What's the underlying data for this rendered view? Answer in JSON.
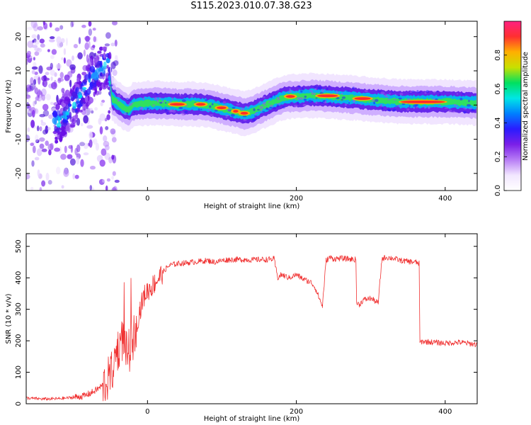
{
  "figure": {
    "title": "S115.2023.010.07.38.G23"
  },
  "chart_data": [
    {
      "type": "heatmap",
      "title": "S115.2023.010.07.38.G23",
      "xlabel": "Height of straight line (km)",
      "ylabel": "Frequency (Hz)",
      "xlim": [
        -163,
        443
      ],
      "ylim": [
        -25,
        24.5
      ],
      "x_ticks": [
        0,
        200,
        400
      ],
      "y_ticks": [
        -20,
        -10,
        0,
        10,
        20
      ],
      "grid": false,
      "colorbar": {
        "label": "Normalized spectral amplitude",
        "range": [
          0,
          1
        ],
        "ticks": [
          0.0,
          0.2,
          0.4,
          0.6,
          0.8
        ],
        "colormap": [
          "#ffffff",
          "#f2e6ff",
          "#b77cf5",
          "#7a1fe8",
          "#2a1cff",
          "#0080ff",
          "#00e6e6",
          "#00e060",
          "#c8e000",
          "#ffb000",
          "#ff3030",
          "#ff2080"
        ]
      },
      "ridge_center": {
        "x": [
          -163,
          -150,
          -140,
          -130,
          -120,
          -110,
          -100,
          -90,
          -80,
          -70,
          -60,
          -52,
          -48,
          -40,
          -30,
          -25,
          -20,
          -10,
          0,
          20,
          40,
          60,
          80,
          100,
          110,
          120,
          130,
          140,
          150,
          160,
          170,
          180,
          190,
          200,
          220,
          240,
          260,
          280,
          300,
          320,
          340,
          360,
          380,
          400,
          420,
          443
        ],
        "y": [
          -10,
          -8,
          -6,
          -4,
          -5,
          -3,
          0,
          3,
          6,
          9,
          11,
          12,
          2,
          0.5,
          -1,
          -1.5,
          0,
          0.3,
          0.5,
          0.5,
          0.2,
          0.3,
          0,
          -1,
          -1.5,
          -2,
          -2.5,
          -2,
          -1,
          0,
          1,
          2,
          2.5,
          2.5,
          2.8,
          2.6,
          2.3,
          2,
          1.6,
          1.3,
          1,
          1,
          1,
          1,
          0.8,
          0.6
        ]
      },
      "peak_segments": [
        {
          "x": [
            30,
            50
          ],
          "y": 0.2
        },
        {
          "x": [
            65,
            78
          ],
          "y": 0.2
        },
        {
          "x": [
            93,
            106
          ],
          "y": -0.8
        },
        {
          "x": [
            115,
            122
          ],
          "y": -1.8
        },
        {
          "x": [
            125,
            135
          ],
          "y": -2.4
        },
        {
          "x": [
            186,
            198
          ],
          "y": 2.5
        },
        {
          "x": [
            228,
            256
          ],
          "y": 2.7
        },
        {
          "x": [
            278,
            300
          ],
          "y": 1.9
        },
        {
          "x": [
            340,
            400
          ],
          "y": 0.9
        }
      ]
    },
    {
      "type": "line",
      "xlabel": "Height of straight line (km)",
      "ylabel": "SNR (10 * v/v)",
      "xlim": [
        -163,
        443
      ],
      "ylim": [
        0,
        540
      ],
      "x_ticks": [
        0,
        200,
        400
      ],
      "y_ticks": [
        0,
        100,
        200,
        300,
        400,
        500
      ],
      "grid": false,
      "color": "#f03030",
      "series": [
        {
          "x": [
            -163,
            -140,
            -120,
            -100,
            -85,
            -75,
            -65,
            -55,
            -48,
            -42,
            -37,
            -32,
            -28,
            -24,
            -20,
            -15,
            -10,
            -5,
            0,
            5,
            10,
            15,
            20,
            25,
            30,
            40,
            50,
            60,
            70,
            80,
            90,
            100,
            110,
            120,
            130,
            140,
            150,
            160,
            170,
            175,
            180,
            190,
            200,
            210,
            220,
            225,
            230,
            235,
            240,
            245,
            250,
            260,
            270,
            280,
            281,
            285,
            290,
            300,
            310,
            315,
            320,
            330,
            340,
            350,
            360,
            365,
            366,
            370,
            380,
            390,
            400,
            410,
            420,
            430,
            443
          ],
          "y": [
            18,
            15,
            16,
            20,
            25,
            35,
            50,
            70,
            100,
            160,
            190,
            210,
            160,
            170,
            200,
            250,
            300,
            340,
            360,
            370,
            385,
            400,
            415,
            430,
            440,
            445,
            447,
            450,
            452,
            455,
            450,
            455,
            458,
            458,
            458,
            457,
            458,
            458,
            460,
            400,
            410,
            400,
            410,
            395,
            385,
            370,
            340,
            310,
            455,
            465,
            460,
            462,
            460,
            458,
            320,
            315,
            330,
            335,
            320,
            460,
            465,
            462,
            455,
            452,
            450,
            445,
            195,
            198,
            196,
            194,
            192,
            194,
            195,
            192,
            188
          ]
        }
      ]
    }
  ]
}
